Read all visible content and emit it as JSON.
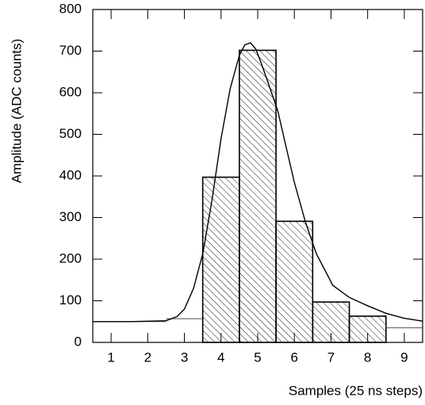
{
  "chart_data": {
    "type": "histogram",
    "xlabel": "Samples (25 ns steps)",
    "ylabel": "Amplitude (ADC counts)",
    "bins": [
      0.5,
      1.5,
      2.5,
      3.5,
      4.5,
      5.5,
      6.5,
      7.5,
      8.5,
      9.5
    ],
    "counts": [
      50,
      50,
      57,
      397,
      702,
      291,
      97,
      63,
      35
    ],
    "hatched": [
      false,
      false,
      false,
      true,
      true,
      true,
      true,
      true,
      false
    ],
    "color": "#000000",
    "fit": {
      "x": [
        0.5,
        1.5,
        2.5,
        2.8,
        3.0,
        3.25,
        3.5,
        3.75,
        4.0,
        4.25,
        4.5,
        4.65,
        4.8,
        4.95,
        5.1,
        5.3,
        5.55,
        5.8,
        6.0,
        6.3,
        6.6,
        7.05,
        7.5,
        8.0,
        8.5,
        9.0,
        9.5
      ],
      "y": [
        50,
        50,
        52,
        62,
        80,
        130,
        213,
        340,
        490,
        610,
        690,
        715,
        720,
        705,
        670,
        620,
        556,
        460,
        385,
        290,
        213,
        137,
        108,
        88,
        70,
        58,
        51
      ]
    },
    "xlim": [
      0.5,
      9.5
    ],
    "ylim": [
      0,
      800
    ],
    "xticks": [
      1,
      2,
      3,
      4,
      5,
      6,
      7,
      8,
      9
    ],
    "yticks": [
      0,
      100,
      200,
      300,
      400,
      500,
      600,
      700,
      800
    ]
  }
}
